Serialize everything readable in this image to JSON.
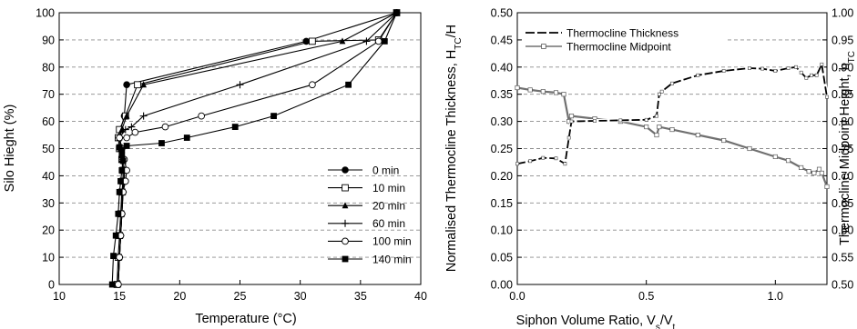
{
  "chart_data": [
    {
      "type": "line",
      "xlabel": "Temperature (°C)",
      "ylabel": "Silo Hieght (%)",
      "xlim": [
        10,
        40
      ],
      "ylim": [
        0,
        100
      ],
      "xticks": [
        10,
        15,
        20,
        25,
        30,
        35,
        40
      ],
      "yticks": [
        0,
        10,
        20,
        30,
        40,
        50,
        60,
        70,
        80,
        90,
        100
      ],
      "grid": "horizontal dashed",
      "legend_position": "bottom-right",
      "series": [
        {
          "name": "0 min",
          "marker": "filled-circle",
          "x": [
            14.9,
            15.0,
            15.1,
            15.2,
            15.25,
            15.3,
            15.3,
            15.2,
            15.1,
            15.0,
            15.1,
            15.4,
            15.6,
            30.5,
            38.0
          ],
          "y": [
            0,
            10,
            18,
            26,
            34,
            38,
            42,
            46,
            50,
            54,
            57,
            62,
            73.5,
            89.5,
            100
          ]
        },
        {
          "name": "10 min",
          "marker": "open-square",
          "x": [
            14.8,
            14.9,
            15.0,
            15.1,
            15.2,
            15.3,
            15.3,
            15.2,
            15.0,
            14.9,
            15.0,
            15.5,
            16.5,
            31.0,
            36.5,
            38.0
          ],
          "y": [
            0,
            10,
            18,
            26,
            34,
            38,
            42,
            46,
            50,
            54,
            57,
            62,
            73.5,
            89.5,
            90,
            100
          ]
        },
        {
          "name": "20 min",
          "marker": "filled-triangle",
          "x": [
            14.9,
            15.0,
            15.1,
            15.2,
            15.3,
            15.3,
            15.3,
            15.2,
            15.1,
            15.0,
            15.2,
            15.6,
            17.0,
            33.5,
            38.0
          ],
          "y": [
            0,
            10,
            18,
            26,
            34,
            38,
            42,
            46,
            50,
            54,
            57,
            62,
            73.5,
            89.5,
            100
          ]
        },
        {
          "name": "60 min",
          "marker": "plus",
          "x": [
            14.9,
            15.0,
            15.1,
            15.2,
            15.3,
            15.4,
            15.4,
            15.3,
            15.2,
            15.0,
            15.5,
            16.0,
            17.0,
            25.0,
            35.5,
            38.0
          ],
          "y": [
            0,
            10,
            18,
            26,
            34,
            38,
            42,
            46,
            50,
            54,
            57,
            58,
            62,
            73.5,
            89.5,
            100
          ]
        },
        {
          "name": "100 min",
          "marker": "open-circle",
          "x": [
            14.9,
            15.0,
            15.1,
            15.2,
            15.3,
            15.5,
            15.6,
            15.4,
            15.2,
            15.0,
            15.6,
            16.3,
            18.8,
            21.8,
            31.0,
            36.5,
            38.0
          ],
          "y": [
            0,
            10,
            18,
            26,
            34,
            38,
            42,
            46,
            50,
            54,
            54,
            56,
            58,
            62,
            73.5,
            89.5,
            100
          ]
        },
        {
          "name": "140 min",
          "marker": "filled-square",
          "x": [
            14.4,
            14.5,
            14.7,
            14.9,
            15.0,
            15.1,
            15.2,
            15.3,
            15.2,
            15.0,
            15.2,
            15.6,
            18.5,
            20.6,
            24.6,
            27.8,
            34.0,
            37.0,
            38.0
          ],
          "y": [
            0,
            10.5,
            18,
            26,
            34,
            38,
            42,
            45.5,
            47.5,
            50.5,
            49.5,
            51,
            52,
            54,
            58,
            62,
            73.5,
            89.5,
            100
          ]
        }
      ]
    },
    {
      "type": "line",
      "xlabel": "Siphon Volume Ratio, V_s/V_t",
      "ylabel": "Normalised Thermocline Thickness, H_TC/H",
      "ylabel_right": "Thermocline Midpoint Height, h_TC",
      "xlim": [
        0,
        1.2
      ],
      "ylim": [
        0,
        0.5
      ],
      "ylim_right": [
        0.5,
        1.0
      ],
      "xticks": [
        0.0,
        0.5,
        1.0
      ],
      "yticks": [
        0.0,
        0.05,
        0.1,
        0.15,
        0.2,
        0.25,
        0.3,
        0.35,
        0.4,
        0.45,
        0.5
      ],
      "yticks_right": [
        0.5,
        0.55,
        0.6,
        0.65,
        0.7,
        0.75,
        0.8,
        0.85,
        0.9,
        0.95,
        1.0
      ],
      "grid": "horizontal dashed",
      "legend_position": "top-left",
      "series": [
        {
          "name": "Thermocline Thickness",
          "axis": "left",
          "style": "long-dash",
          "x": [
            0.0,
            0.05,
            0.1,
            0.15,
            0.185,
            0.2,
            0.21,
            0.3,
            0.4,
            0.5,
            0.54,
            0.55,
            0.56,
            0.6,
            0.7,
            0.8,
            0.9,
            0.95,
            1.0,
            1.05,
            1.08,
            1.1,
            1.12,
            1.14,
            1.16,
            1.18,
            1.2
          ],
          "y": [
            0.222,
            0.227,
            0.233,
            0.232,
            0.222,
            0.27,
            0.3,
            0.301,
            0.302,
            0.303,
            0.31,
            0.35,
            0.355,
            0.37,
            0.385,
            0.393,
            0.398,
            0.397,
            0.393,
            0.398,
            0.4,
            0.39,
            0.38,
            0.385,
            0.385,
            0.405,
            0.345
          ]
        },
        {
          "name": "Thermocline Midpoint",
          "axis": "right",
          "style": "line-with-open-squares",
          "x": [
            0.0,
            0.05,
            0.1,
            0.15,
            0.18,
            0.2,
            0.21,
            0.3,
            0.4,
            0.5,
            0.54,
            0.55,
            0.6,
            0.7,
            0.8,
            0.9,
            1.0,
            1.05,
            1.1,
            1.13,
            1.15,
            1.17,
            1.18,
            1.2
          ],
          "y": [
            0.862,
            0.858,
            0.855,
            0.853,
            0.85,
            0.8,
            0.81,
            0.805,
            0.8,
            0.79,
            0.775,
            0.79,
            0.785,
            0.775,
            0.765,
            0.75,
            0.735,
            0.728,
            0.715,
            0.708,
            0.705,
            0.712,
            0.705,
            0.68
          ]
        }
      ]
    }
  ],
  "left_axes": {
    "xlabel": "Temperature (°C)",
    "ylabel": "Silo Hieght (%)"
  },
  "right_axes": {
    "xlabel_main": "Siphon Volume Ratio, V",
    "xlabel_sub1": "s",
    "xlabel_slash": "/V",
    "xlabel_sub2": "t",
    "ylabel_main": "Normalised Thermocline Thickness, H",
    "ylabel_sub": "TC",
    "ylabel_tail": "/H",
    "ylabel2_main": "Thermocline Midpoint Height, h",
    "ylabel2_sub": "TC"
  },
  "colors": {
    "axis": "#000000",
    "grid": "#8c8c8c",
    "series": "#000000",
    "midpoint_line": "#707070"
  }
}
